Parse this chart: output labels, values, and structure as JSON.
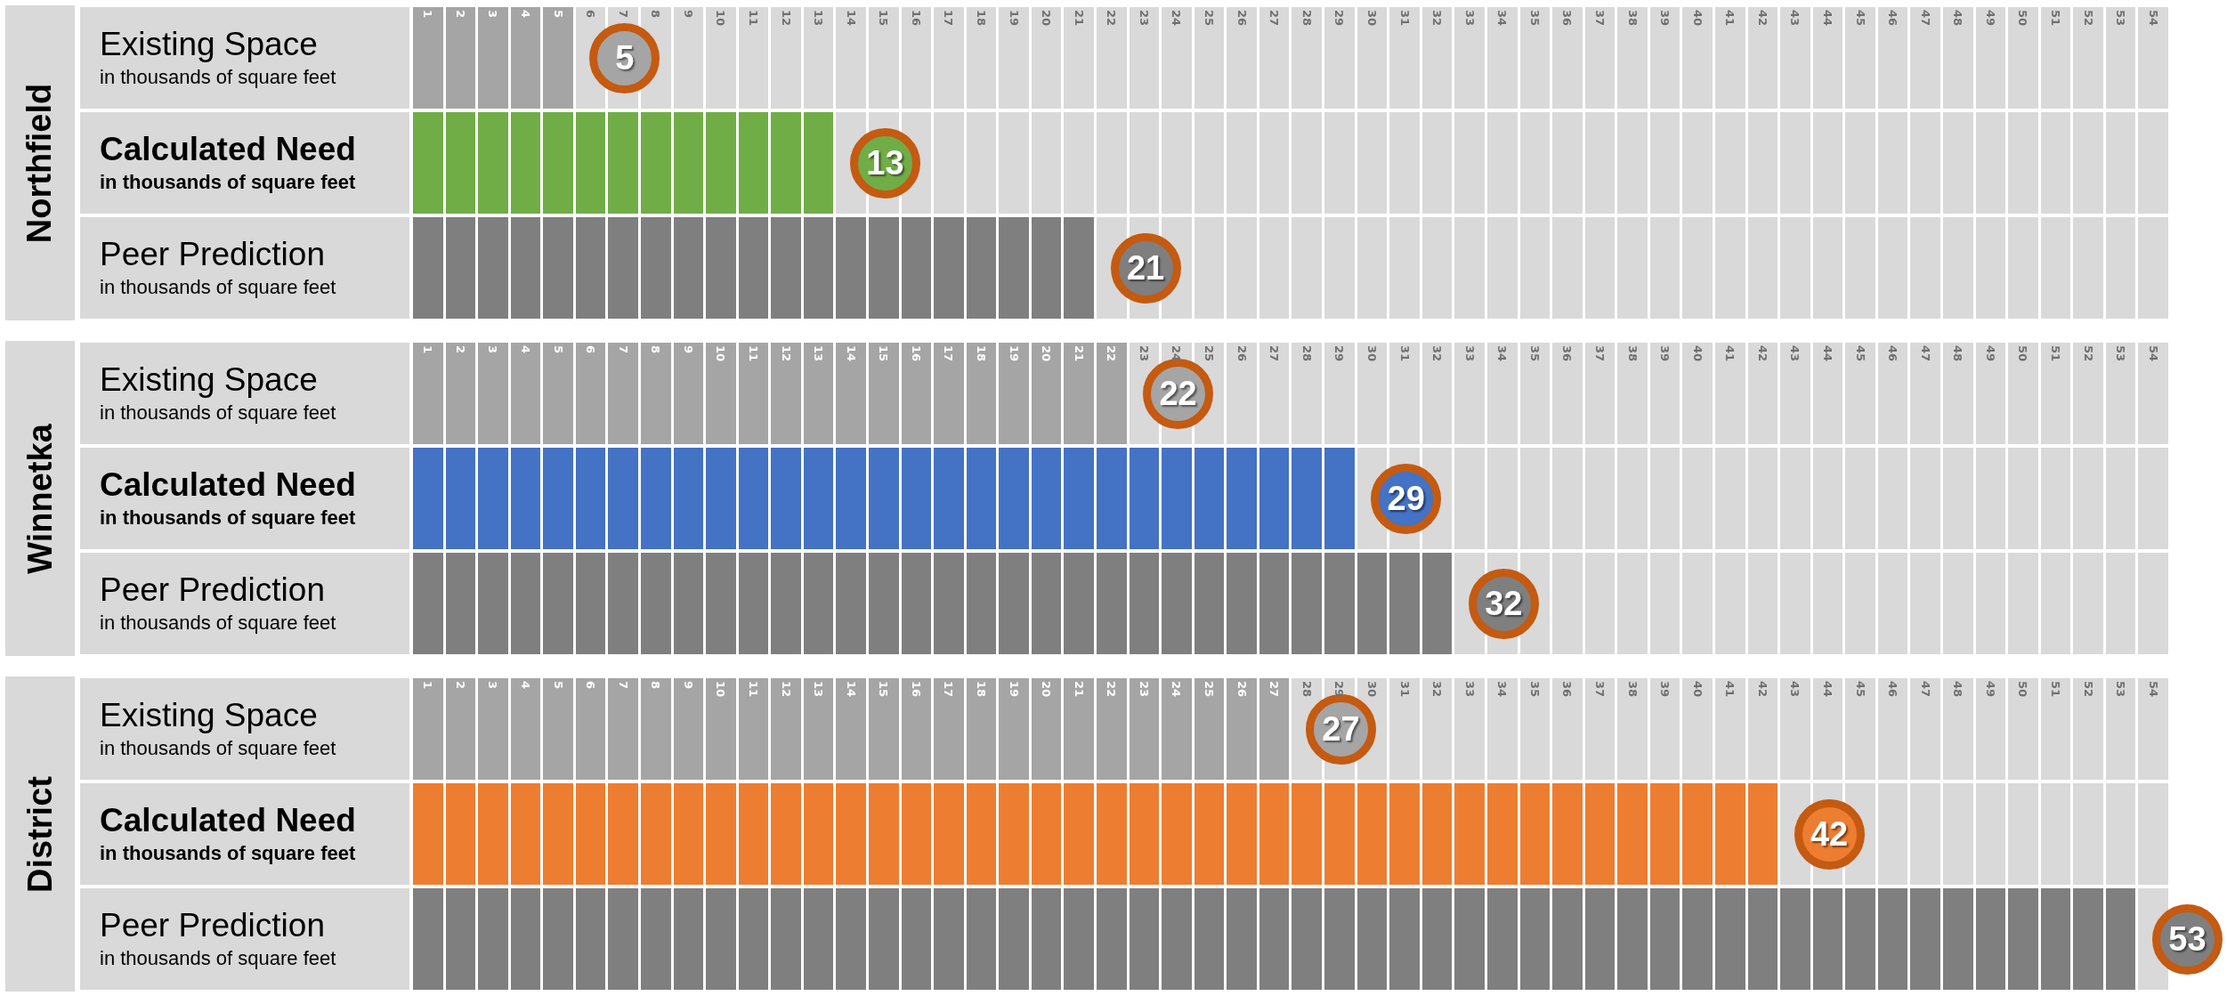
{
  "chart_data": [
    {
      "type": "bar",
      "orientation": "horizontal",
      "title": "Northfield",
      "categories": [
        "Existing Space\nin thousands of square feet",
        "Calculated Need\nin thousands of square feet",
        "Peer Prediction\nin thousands of square feet"
      ],
      "values": [
        5,
        13,
        21
      ],
      "colors": [
        "#a5a5a5",
        "#70ad47",
        "#7f7f7f"
      ],
      "data_labels": true,
      "xlim": [
        0,
        54
      ],
      "xticks": [
        {
          "value": 0.5,
          "label": "1"
        },
        {
          "value": 1.5,
          "label": "2"
        },
        {
          "value": 2.5,
          "label": "3"
        },
        {
          "value": 3.5,
          "label": "4"
        },
        {
          "value": 4.5,
          "label": "5"
        },
        {
          "value": 5.5,
          "label": "6"
        },
        {
          "value": 6.5,
          "label": "7"
        },
        {
          "value": 7.5,
          "label": "8"
        },
        {
          "value": 8.5,
          "label": "9"
        },
        {
          "value": 9.5,
          "label": "10"
        },
        {
          "value": 10.5,
          "label": "11"
        },
        {
          "value": 11.5,
          "label": "12"
        },
        {
          "value": 12.5,
          "label": "13"
        },
        {
          "value": 13.5,
          "label": "14"
        },
        {
          "value": 14.5,
          "label": "15"
        },
        {
          "value": 15.5,
          "label": "16"
        },
        {
          "value": 16.5,
          "label": "17"
        },
        {
          "value": 17.5,
          "label": "18"
        },
        {
          "value": 18.5,
          "label": "19"
        },
        {
          "value": 19.5,
          "label": "20"
        },
        {
          "value": 20.5,
          "label": "21"
        },
        {
          "value": 21.5,
          "label": "22"
        },
        {
          "value": 22.5,
          "label": "23"
        },
        {
          "value": 23.5,
          "label": "24"
        },
        {
          "value": 24.5,
          "label": "25"
        },
        {
          "value": 25.5,
          "label": "26"
        },
        {
          "value": 26.5,
          "label": "27"
        },
        {
          "value": 27.5,
          "label": "28"
        },
        {
          "value": 28.5,
          "label": "29"
        },
        {
          "value": 29.5,
          "label": "30"
        },
        {
          "value": 30.5,
          "label": "31"
        },
        {
          "value": 31.5,
          "label": "32"
        },
        {
          "value": 32.5,
          "label": "33"
        },
        {
          "value": 33.5,
          "label": "34"
        },
        {
          "value": 34.5,
          "label": "35"
        },
        {
          "value": 35.5,
          "label": "36"
        },
        {
          "value": 36.5,
          "label": "37"
        },
        {
          "value": 37.5,
          "label": "38"
        },
        {
          "value": 38.5,
          "label": "39"
        },
        {
          "value": 39.5,
          "label": "40"
        },
        {
          "value": 40.5,
          "label": "41"
        },
        {
          "value": 41.5,
          "label": "42"
        },
        {
          "value": 42.5,
          "label": "43"
        },
        {
          "value": 43.5,
          "label": "44"
        },
        {
          "value": 44.5,
          "label": "45"
        },
        {
          "value": 45.5,
          "label": "46"
        },
        {
          "value": 46.5,
          "label": "47"
        },
        {
          "value": 47.5,
          "label": "48"
        },
        {
          "value": 48.5,
          "label": "49"
        },
        {
          "value": 49.5,
          "label": "50"
        },
        {
          "value": 50.5,
          "label": "51"
        },
        {
          "value": 51.5,
          "label": "52"
        },
        {
          "value": 52.5,
          "label": "53"
        },
        {
          "value": 53.5,
          "label": "54"
        }
      ]
    },
    {
      "type": "bar",
      "orientation": "horizontal",
      "title": "Winnetka",
      "categories": [
        "Existing Space\nin thousands of square feet",
        "Calculated Need\nin thousands of square feet",
        "Peer Prediction\nin thousands of square feet"
      ],
      "values": [
        22,
        29,
        32
      ],
      "colors": [
        "#a5a5a5",
        "#4472c4",
        "#7f7f7f"
      ],
      "data_labels": true,
      "xlim": [
        0,
        54
      ],
      "xticks": [
        {
          "value": 0.5,
          "label": "1"
        },
        {
          "value": 1.5,
          "label": "2"
        },
        {
          "value": 2.5,
          "label": "3"
        },
        {
          "value": 3.5,
          "label": "4"
        },
        {
          "value": 4.5,
          "label": "5"
        },
        {
          "value": 5.5,
          "label": "6"
        },
        {
          "value": 6.5,
          "label": "7"
        },
        {
          "value": 7.5,
          "label": "8"
        },
        {
          "value": 8.5,
          "label": "9"
        },
        {
          "value": 9.5,
          "label": "10"
        },
        {
          "value": 10.5,
          "label": "11"
        },
        {
          "value": 11.5,
          "label": "12"
        },
        {
          "value": 12.5,
          "label": "13"
        },
        {
          "value": 13.5,
          "label": "14"
        },
        {
          "value": 14.5,
          "label": "15"
        },
        {
          "value": 15.5,
          "label": "16"
        },
        {
          "value": 16.5,
          "label": "17"
        },
        {
          "value": 17.5,
          "label": "18"
        },
        {
          "value": 18.5,
          "label": "19"
        },
        {
          "value": 19.5,
          "label": "20"
        },
        {
          "value": 20.5,
          "label": "21"
        },
        {
          "value": 21.5,
          "label": "22"
        },
        {
          "value": 22.5,
          "label": "23"
        },
        {
          "value": 23.5,
          "label": "24"
        },
        {
          "value": 24.5,
          "label": "25"
        },
        {
          "value": 25.5,
          "label": "26"
        },
        {
          "value": 26.5,
          "label": "27"
        },
        {
          "value": 27.5,
          "label": "28"
        },
        {
          "value": 28.5,
          "label": "29"
        },
        {
          "value": 29.5,
          "label": "30"
        },
        {
          "value": 30.5,
          "label": "31"
        },
        {
          "value": 31.5,
          "label": "32"
        },
        {
          "value": 32.5,
          "label": "33"
        },
        {
          "value": 33.5,
          "label": "34"
        },
        {
          "value": 34.5,
          "label": "35"
        },
        {
          "value": 35.5,
          "label": "36"
        },
        {
          "value": 36.5,
          "label": "37"
        },
        {
          "value": 37.5,
          "label": "38"
        },
        {
          "value": 38.5,
          "label": "39"
        },
        {
          "value": 39.5,
          "label": "40"
        },
        {
          "value": 40.5,
          "label": "41"
        },
        {
          "value": 41.5,
          "label": "42"
        },
        {
          "value": 42.5,
          "label": "43"
        },
        {
          "value": 43.5,
          "label": "44"
        },
        {
          "value": 44.5,
          "label": "45"
        },
        {
          "value": 45.5,
          "label": "46"
        },
        {
          "value": 46.5,
          "label": "47"
        },
        {
          "value": 47.5,
          "label": "48"
        },
        {
          "value": 48.5,
          "label": "49"
        },
        {
          "value": 49.5,
          "label": "50"
        },
        {
          "value": 50.5,
          "label": "51"
        },
        {
          "value": 51.5,
          "label": "52"
        },
        {
          "value": 52.5,
          "label": "53"
        },
        {
          "value": 53.5,
          "label": "54"
        }
      ]
    },
    {
      "type": "bar",
      "orientation": "horizontal",
      "title": "District",
      "categories": [
        "Existing Space\nin thousands of square feet",
        "Calculated Need\nin thousands of square feet",
        "Peer Prediction\nin thousands of square feet"
      ],
      "values": [
        27,
        42,
        53
      ],
      "colors": [
        "#a5a5a5",
        "#ed7d31",
        "#7f7f7f"
      ],
      "data_labels": true,
      "xlim": [
        0,
        54
      ],
      "xticks": [
        {
          "value": 0.5,
          "label": "1"
        },
        {
          "value": 1.5,
          "label": "2"
        },
        {
          "value": 2.5,
          "label": "3"
        },
        {
          "value": 3.5,
          "label": "4"
        },
        {
          "value": 4.5,
          "label": "5"
        },
        {
          "value": 5.5,
          "label": "6"
        },
        {
          "value": 6.5,
          "label": "7"
        },
        {
          "value": 7.5,
          "label": "8"
        },
        {
          "value": 8.5,
          "label": "9"
        },
        {
          "value": 9.5,
          "label": "10"
        },
        {
          "value": 10.5,
          "label": "11"
        },
        {
          "value": 11.5,
          "label": "12"
        },
        {
          "value": 12.5,
          "label": "13"
        },
        {
          "value": 13.5,
          "label": "14"
        },
        {
          "value": 14.5,
          "label": "15"
        },
        {
          "value": 15.5,
          "label": "16"
        },
        {
          "value": 16.5,
          "label": "17"
        },
        {
          "value": 17.5,
          "label": "18"
        },
        {
          "value": 18.5,
          "label": "19"
        },
        {
          "value": 19.5,
          "label": "20"
        },
        {
          "value": 20.5,
          "label": "21"
        },
        {
          "value": 21.5,
          "label": "22"
        },
        {
          "value": 22.5,
          "label": "23"
        },
        {
          "value": 23.5,
          "label": "24"
        },
        {
          "value": 24.5,
          "label": "25"
        },
        {
          "value": 25.5,
          "label": "26"
        },
        {
          "value": 26.5,
          "label": "27"
        },
        {
          "value": 27.5,
          "label": "28"
        },
        {
          "value": 28.5,
          "label": "29"
        },
        {
          "value": 29.5,
          "label": "30"
        },
        {
          "value": 30.5,
          "label": "31"
        },
        {
          "value": 31.5,
          "label": "32"
        },
        {
          "value": 32.5,
          "label": "33"
        },
        {
          "value": 33.5,
          "label": "34"
        },
        {
          "value": 34.5,
          "label": "35"
        },
        {
          "value": 35.5,
          "label": "36"
        },
        {
          "value": 36.5,
          "label": "37"
        },
        {
          "value": 37.5,
          "label": "38"
        },
        {
          "value": 38.5,
          "label": "39"
        },
        {
          "value": 39.5,
          "label": "40"
        },
        {
          "value": 40.5,
          "label": "41"
        },
        {
          "value": 41.5,
          "label": "42"
        },
        {
          "value": 42.5,
          "label": "43"
        },
        {
          "value": 43.5,
          "label": "44"
        },
        {
          "value": 44.5,
          "label": "45"
        },
        {
          "value": 45.5,
          "label": "46"
        },
        {
          "value": 46.5,
          "label": "47"
        },
        {
          "value": 47.5,
          "label": "48"
        },
        {
          "value": 48.5,
          "label": "49"
        },
        {
          "value": 49.5,
          "label": "50"
        },
        {
          "value": 50.5,
          "label": "51"
        },
        {
          "value": 51.5,
          "label": "52"
        },
        {
          "value": 52.5,
          "label": "53"
        },
        {
          "value": 53.5,
          "label": "54"
        }
      ]
    }
  ]
}
